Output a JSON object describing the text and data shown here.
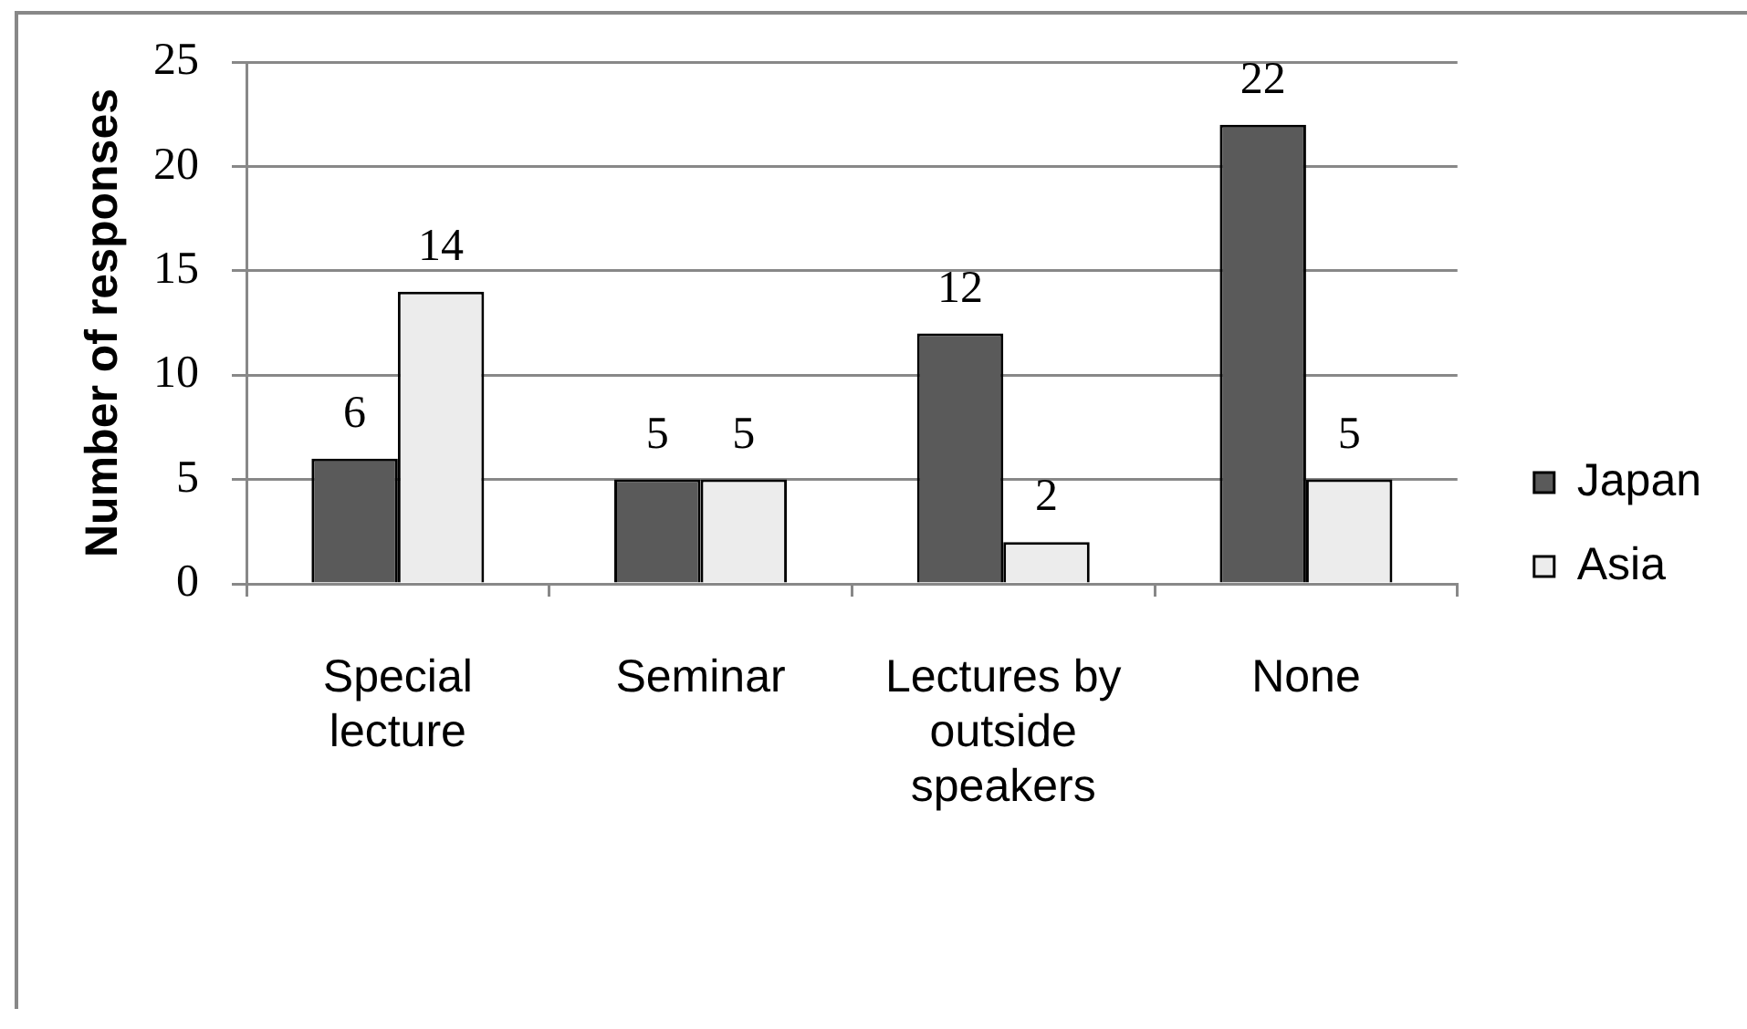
{
  "chart_data": {
    "type": "bar",
    "ylabel": "Number of responses",
    "categories": [
      "Special lecture",
      "Seminar",
      "Lectures by outside speakers",
      "None"
    ],
    "series": [
      {
        "name": "Japan",
        "color": "#5a5a5a",
        "values": [
          6,
          5,
          12,
          22
        ]
      },
      {
        "name": "Asia",
        "color": "#ececec",
        "values": [
          14,
          5,
          2,
          5
        ]
      }
    ],
    "ylim": [
      0,
      25
    ],
    "yticks": [
      0,
      5,
      10,
      15,
      20,
      25
    ],
    "grid": "y",
    "legend": "right",
    "data_labels": true
  }
}
